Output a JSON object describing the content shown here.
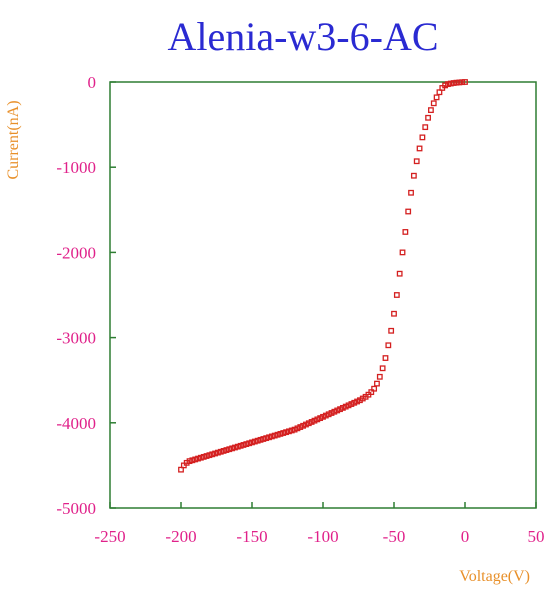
{
  "chart_data": {
    "type": "scatter",
    "title": "Alenia-w3-6-AC",
    "xlabel": "Voltage(V)",
    "ylabel": "Current(nA)",
    "xlim": [
      -250,
      50
    ],
    "ylim": [
      -5000,
      0
    ],
    "x_ticks": [
      "-250",
      "-200",
      "-150",
      "-100",
      "-50",
      "0",
      "50"
    ],
    "y_ticks": [
      "0",
      "-1000",
      "-2000",
      "-3000",
      "-4000",
      "-5000"
    ],
    "grid": false,
    "colors": {
      "title": "#2a2ad2",
      "ticks": "#e0218a",
      "axis_labels": "#e8902a",
      "frame": "#2e7d32",
      "markers": "#d42020"
    },
    "series": [
      {
        "marker": "open-square",
        "x": [
          0,
          -2,
          -4,
          -6,
          -8,
          -10,
          -12,
          -14,
          -16,
          -18,
          -20,
          -22,
          -24,
          -26,
          -28,
          -30,
          -32,
          -34,
          -36,
          -38,
          -40,
          -42,
          -44,
          -46,
          -48,
          -50,
          -52,
          -54,
          -56,
          -58,
          -60,
          -62,
          -64,
          -66,
          -68,
          -70,
          -72,
          -74,
          -76,
          -78,
          -80,
          -82,
          -84,
          -86,
          -88,
          -90,
          -92,
          -94,
          -96,
          -98,
          -100,
          -102,
          -104,
          -106,
          -108,
          -110,
          -112,
          -114,
          -116,
          -118,
          -120,
          -122,
          -124,
          -126,
          -128,
          -130,
          -132,
          -134,
          -136,
          -138,
          -140,
          -142,
          -144,
          -146,
          -148,
          -150,
          -152,
          -154,
          -156,
          -158,
          -160,
          -162,
          -164,
          -166,
          -168,
          -170,
          -172,
          -174,
          -176,
          -178,
          -180,
          -182,
          -184,
          -186,
          -188,
          -190,
          -192,
          -194,
          -196,
          -198,
          -200
        ],
        "y": [
          0,
          -2,
          -5,
          -8,
          -12,
          -18,
          -25,
          -40,
          -70,
          -120,
          -180,
          -250,
          -330,
          -420,
          -530,
          -650,
          -780,
          -930,
          -1100,
          -1300,
          -1520,
          -1760,
          -2000,
          -2250,
          -2500,
          -2720,
          -2920,
          -3090,
          -3240,
          -3360,
          -3460,
          -3540,
          -3600,
          -3640,
          -3670,
          -3695,
          -3715,
          -3735,
          -3750,
          -3765,
          -3780,
          -3795,
          -3810,
          -3825,
          -3840,
          -3855,
          -3870,
          -3885,
          -3900,
          -3915,
          -3930,
          -3945,
          -3960,
          -3975,
          -3990,
          -4005,
          -4020,
          -4035,
          -4050,
          -4065,
          -4080,
          -4090,
          -4100,
          -4110,
          -4120,
          -4130,
          -4140,
          -4150,
          -4160,
          -4170,
          -4180,
          -4190,
          -4200,
          -4210,
          -4220,
          -4230,
          -4240,
          -4250,
          -4260,
          -4270,
          -4280,
          -4290,
          -4300,
          -4310,
          -4320,
          -4330,
          -4340,
          -4350,
          -4360,
          -4370,
          -4380,
          -4390,
          -4400,
          -4410,
          -4420,
          -4430,
          -4440,
          -4450,
          -4470,
          -4500,
          -4550
        ]
      }
    ]
  }
}
